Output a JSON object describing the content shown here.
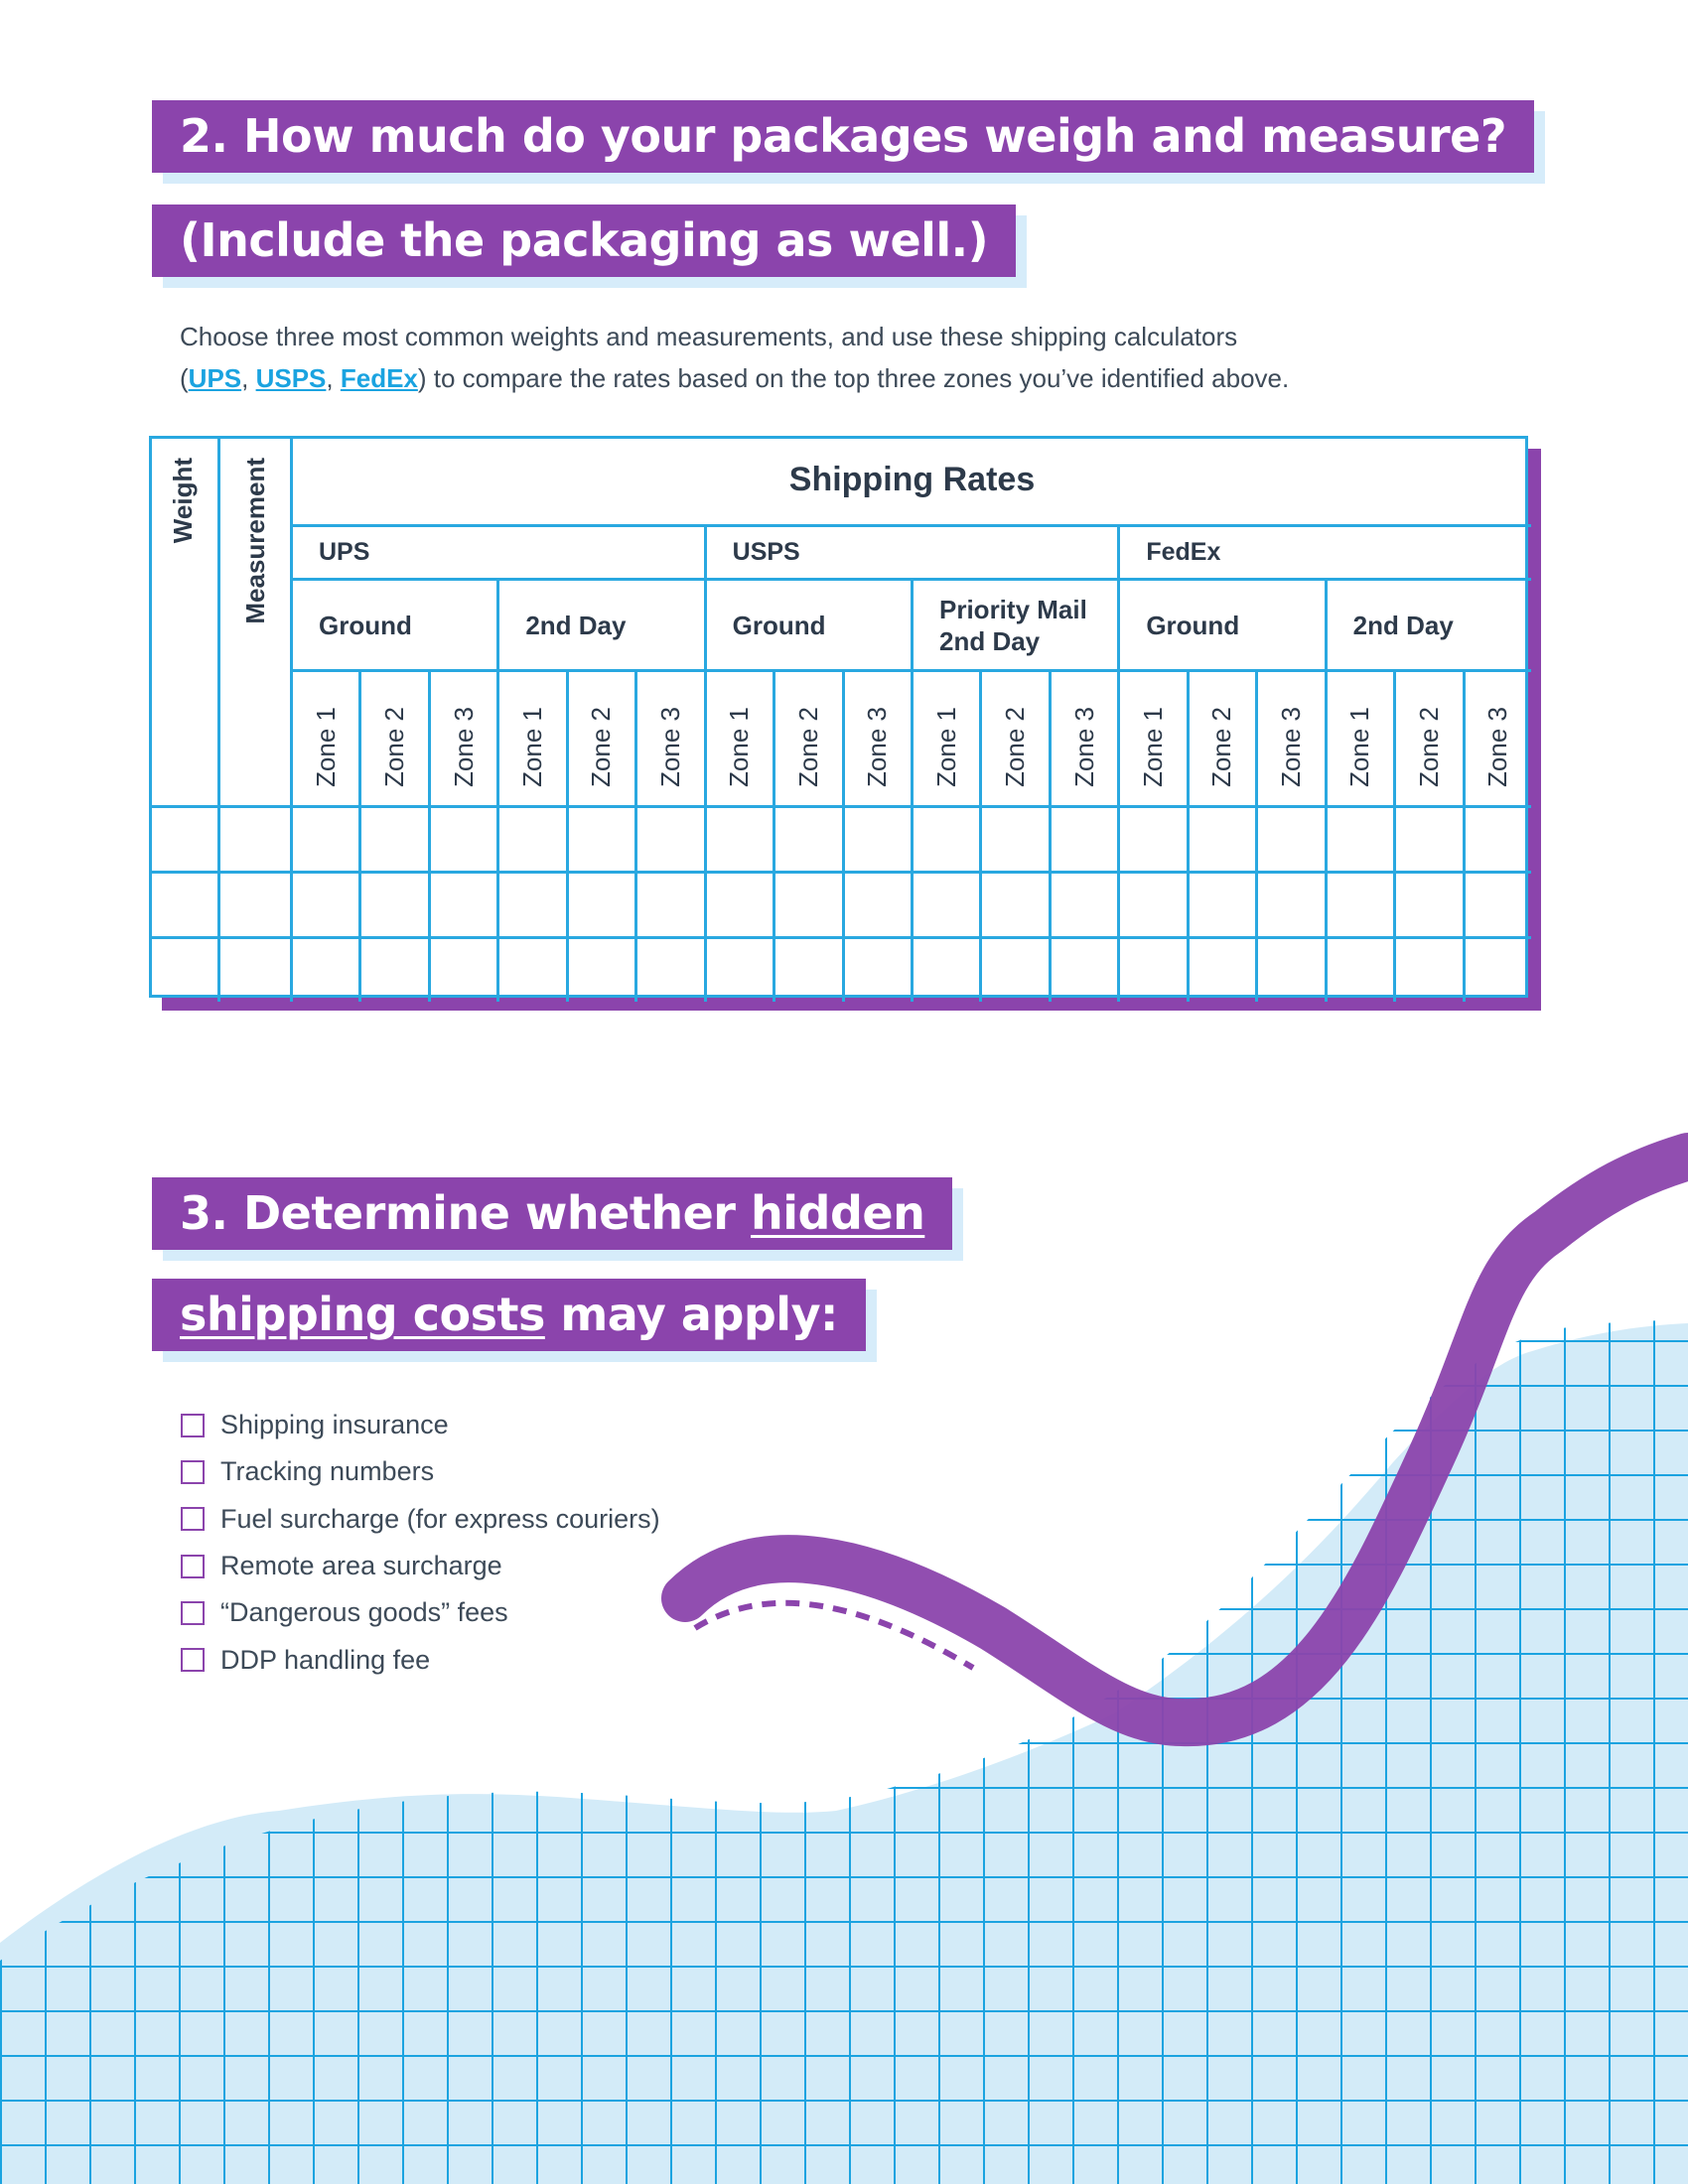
{
  "section2": {
    "heading": [
      "2. How much do your packages weigh and measure?",
      "(Include the packaging as well.)"
    ],
    "intro": {
      "line1": "Choose three most common weights and measurements, and use these shipping calculators",
      "line2": [
        "(",
        "UPS",
        ", ",
        "USPS",
        ", ",
        "FedEx",
        ") to compare the rates based on the top three zones you’ve identified above."
      ]
    }
  },
  "table": {
    "row_headers": [
      "Weight",
      "Measurement"
    ],
    "title": "Shipping Rates",
    "carriers": [
      {
        "name": "UPS",
        "services": [
          {
            "name": "Ground",
            "zones": [
              "Zone 1",
              "Zone 2",
              "Zone 3"
            ]
          },
          {
            "name": "2nd Day",
            "zones": [
              "Zone 1",
              "Zone 2",
              "Zone 3"
            ]
          }
        ]
      },
      {
        "name": "USPS",
        "services": [
          {
            "name": "Ground",
            "zones": [
              "Zone 1",
              "Zone 2",
              "Zone 3"
            ]
          },
          {
            "name": "Priority Mail 2nd Day",
            "zones": [
              "Zone 1",
              "Zone 2",
              "Zone 3"
            ]
          }
        ]
      },
      {
        "name": "FedEx",
        "services": [
          {
            "name": "Ground",
            "zones": [
              "Zone 1",
              "Zone 2",
              "Zone 3"
            ]
          },
          {
            "name": "2nd Day",
            "zones": [
              "Zone 1",
              "Zone 2",
              "Zone 3"
            ]
          }
        ]
      }
    ]
  },
  "section3": {
    "heading": [
      [
        "3. Determine whether ",
        "hidden"
      ],
      [
        "shipping costs",
        " may apply:"
      ]
    ],
    "checklist": [
      "Shipping insurance",
      "Tracking numbers",
      "Fuel surcharge (for express couriers)",
      "Remote area surcharge",
      "“Dangerous goods” fees",
      "DDP handling fee"
    ]
  }
}
